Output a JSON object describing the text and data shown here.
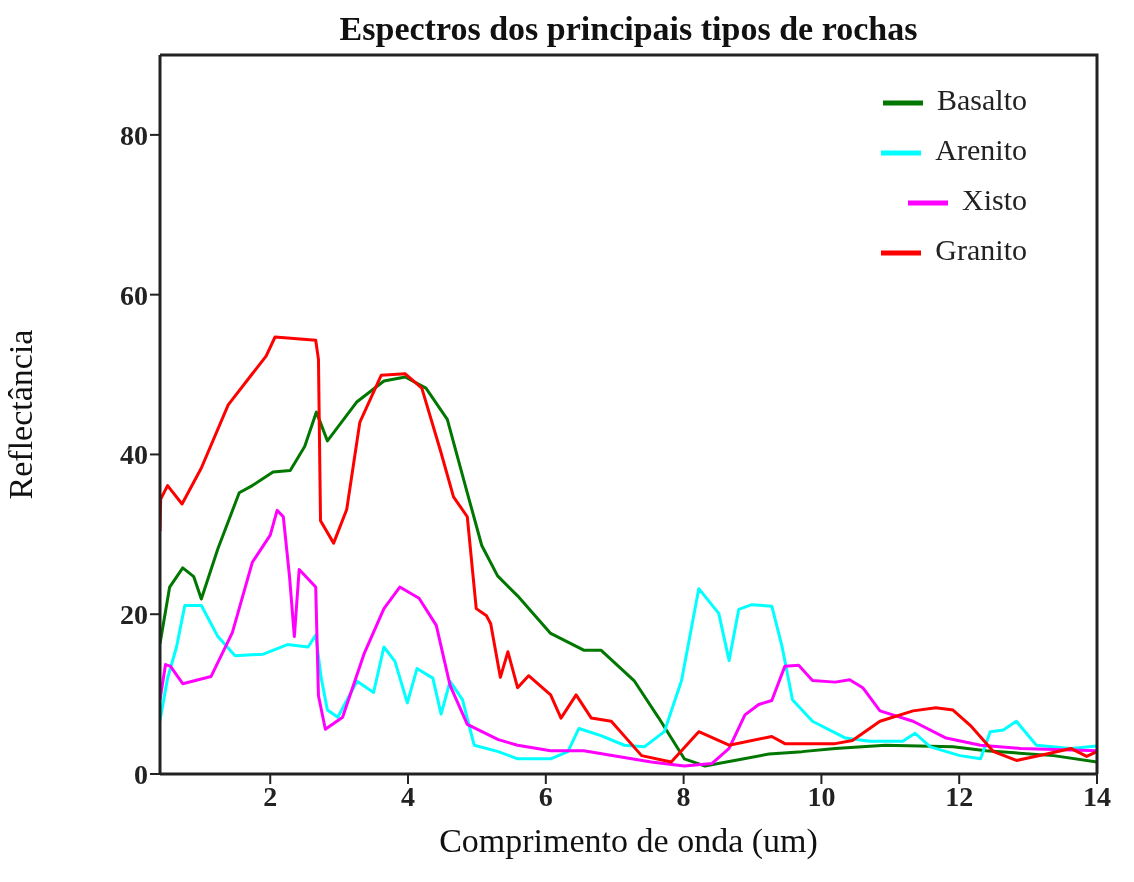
{
  "chart_data": {
    "type": "line",
    "title": "Espectros dos principais tipos de rochas",
    "xlabel": "Comprimento de onda (um)",
    "ylabel": "Reflectância",
    "xlim": [
      0.4,
      14
    ],
    "xticks": [
      2,
      4,
      6,
      8,
      10,
      12,
      14
    ],
    "ylim": [
      0,
      90
    ],
    "yticks": [
      0,
      20,
      40,
      60,
      80
    ],
    "grid": false,
    "legend": "top right",
    "marker": "none",
    "line_style": "solid",
    "series": [
      {
        "name": "Basalto",
        "color": "#007700",
        "x": [
          0.4,
          0.54,
          0.73,
          0.89,
          1.0,
          1.24,
          1.55,
          1.74,
          2.04,
          2.29,
          2.5,
          2.67,
          2.83,
          3.26,
          3.65,
          3.96,
          4.26,
          4.57,
          4.86,
          5.07,
          5.3,
          5.59,
          6.07,
          6.55,
          6.8,
          7.28,
          7.64,
          8.01,
          8.31,
          8.74,
          9.24,
          9.72,
          10.2,
          10.93,
          11.91,
          12.39,
          13.37,
          14.0
        ],
        "values": [
          16.3,
          23.4,
          25.8,
          24.7,
          21.9,
          28.2,
          35.2,
          36.1,
          37.8,
          38.0,
          41.0,
          45.3,
          41.7,
          46.6,
          49.2,
          49.7,
          48.3,
          44.4,
          35.2,
          28.6,
          24.8,
          22.3,
          17.6,
          15.5,
          15.5,
          11.7,
          7.0,
          1.9,
          1.0,
          1.7,
          2.5,
          2.8,
          3.2,
          3.6,
          3.4,
          2.9,
          2.3,
          1.5
        ]
      },
      {
        "name": "Arenito",
        "color": "#00ffff",
        "x": [
          0.4,
          0.51,
          0.64,
          0.76,
          1.0,
          1.24,
          1.49,
          1.9,
          2.25,
          2.55,
          2.66,
          2.74,
          2.83,
          2.98,
          3.26,
          3.5,
          3.65,
          3.81,
          3.99,
          4.13,
          4.36,
          4.48,
          4.61,
          4.79,
          4.96,
          5.31,
          5.59,
          6.07,
          6.32,
          6.48,
          6.8,
          7.14,
          7.43,
          7.72,
          7.97,
          8.22,
          8.51,
          8.66,
          8.8,
          8.99,
          9.28,
          9.43,
          9.58,
          9.87,
          10.35,
          10.7,
          11.18,
          11.36,
          11.58,
          12.01,
          12.31,
          12.45,
          12.64,
          12.83,
          13.12,
          13.62,
          14.0
        ],
        "values": [
          6.7,
          12.0,
          15.9,
          21.1,
          21.1,
          17.2,
          14.8,
          15.0,
          16.2,
          15.9,
          17.4,
          12.0,
          8.0,
          7.1,
          11.6,
          10.2,
          15.9,
          14.1,
          8.9,
          13.2,
          12.0,
          7.5,
          11.6,
          9.3,
          3.6,
          2.8,
          1.9,
          1.9,
          2.8,
          5.7,
          4.8,
          3.6,
          3.4,
          5.3,
          11.7,
          23.2,
          20.1,
          14.2,
          20.6,
          21.2,
          21.0,
          15.9,
          9.3,
          6.6,
          4.5,
          4.1,
          4.1,
          5.1,
          3.4,
          2.3,
          1.9,
          5.3,
          5.5,
          6.6,
          3.6,
          3.2,
          3.5
        ]
      },
      {
        "name": "Xisto",
        "color": "#ff00ff",
        "x": [
          0.4,
          0.48,
          0.55,
          0.73,
          1.14,
          1.45,
          1.74,
          2.0,
          2.1,
          2.19,
          2.28,
          2.35,
          2.42,
          2.66,
          2.7,
          2.8,
          3.05,
          3.36,
          3.65,
          3.88,
          4.16,
          4.41,
          4.61,
          4.86,
          5.31,
          5.59,
          6.07,
          6.55,
          7.05,
          7.53,
          8.01,
          8.41,
          8.66,
          8.89,
          9.09,
          9.28,
          9.47,
          9.67,
          9.87,
          10.2,
          10.41,
          10.6,
          10.85,
          11.33,
          11.81,
          12.31,
          12.89,
          14.0
        ],
        "values": [
          9.3,
          13.7,
          13.5,
          11.3,
          12.2,
          17.7,
          26.5,
          29.9,
          33.0,
          32.2,
          24.7,
          17.2,
          25.6,
          23.4,
          9.8,
          5.6,
          7.1,
          15.0,
          20.7,
          23.4,
          22.0,
          18.6,
          11.1,
          6.2,
          4.3,
          3.6,
          2.9,
          2.9,
          2.2,
          1.5,
          1.0,
          1.3,
          3.2,
          7.4,
          8.7,
          9.2,
          13.5,
          13.6,
          11.7,
          11.5,
          11.8,
          10.8,
          7.9,
          6.6,
          4.5,
          3.6,
          3.2,
          2.9
        ]
      },
      {
        "name": "Granito",
        "color": "#ff0000",
        "x": [
          0.4,
          0.41,
          0.51,
          0.72,
          1.0,
          1.39,
          1.74,
          1.94,
          2.07,
          2.66,
          2.7,
          2.73,
          2.92,
          3.11,
          3.3,
          3.61,
          3.96,
          4.2,
          4.47,
          4.66,
          4.86,
          4.99,
          5.14,
          5.2,
          5.34,
          5.45,
          5.59,
          5.75,
          6.07,
          6.22,
          6.44,
          6.66,
          6.95,
          7.39,
          7.82,
          8.22,
          8.66,
          9.28,
          9.47,
          10.2,
          10.45,
          10.85,
          11.33,
          11.66,
          11.91,
          12.16,
          12.5,
          12.83,
          13.27,
          13.62,
          13.85,
          14.0
        ],
        "values": [
          30.4,
          34.4,
          36.1,
          33.8,
          38.3,
          46.2,
          50.1,
          52.3,
          54.7,
          54.3,
          51.9,
          31.7,
          28.9,
          33.1,
          44.0,
          49.9,
          50.1,
          48.3,
          40.5,
          34.7,
          32.2,
          20.7,
          19.8,
          18.8,
          12.1,
          15.3,
          10.8,
          12.3,
          9.9,
          7.0,
          9.9,
          7.0,
          6.6,
          2.3,
          1.5,
          5.3,
          3.6,
          4.7,
          3.8,
          3.8,
          4.2,
          6.6,
          7.9,
          8.3,
          8.0,
          6.1,
          2.8,
          1.7,
          2.5,
          3.2,
          2.2,
          2.8
        ]
      }
    ]
  }
}
